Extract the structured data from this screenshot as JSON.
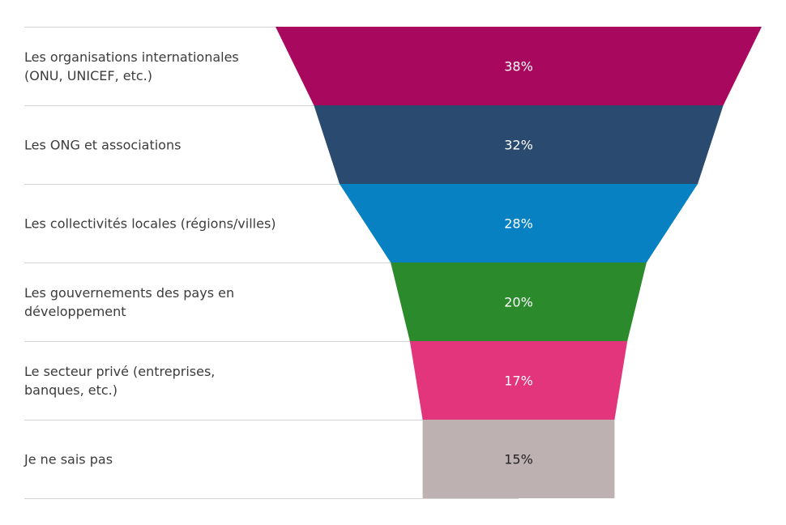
{
  "chart_data": {
    "type": "funnel",
    "categories": [
      [
        "Les organisations internationales",
        "(ONU, UNICEF, etc.)"
      ],
      [
        "Les ONG et associations"
      ],
      [
        "Les collectivités locales (régions/villes)"
      ],
      [
        "Les gouvernements des pays en",
        "développement"
      ],
      [
        "Le secteur privé (entreprises,",
        "banques, etc.)"
      ],
      [
        "Je ne sais pas"
      ]
    ],
    "values": [
      38,
      32,
      28,
      20,
      17,
      15
    ],
    "value_labels": [
      "38%",
      "32%",
      "28%",
      "20%",
      "17%",
      "15%"
    ],
    "colors": [
      "#a8095e",
      "#2b4a6f",
      "#0881c3",
      "#2b8a2c",
      "#e3357b",
      "#bdb1b1"
    ],
    "label_colors": [
      "#ffffff",
      "#ffffff",
      "#ffffff",
      "#ffffff",
      "#ffffff",
      "#222222"
    ],
    "grid": true,
    "legend": "none"
  }
}
